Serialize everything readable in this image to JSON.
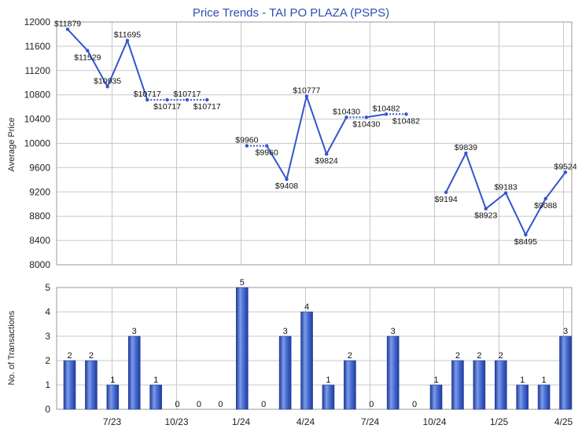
{
  "chart_data": {
    "type": "line+bar",
    "title": "Price Trends - TAI PO PLAZA (PSPS)",
    "x_tick_labels": [
      "7/23",
      "10/23",
      "1/24",
      "4/24",
      "7/24",
      "10/24",
      "1/25",
      "4/25"
    ],
    "top": {
      "type": "line",
      "ylabel": "Average Price",
      "ylim": [
        8000,
        12000
      ],
      "yticks": [
        8000,
        8400,
        8800,
        9200,
        9600,
        10000,
        10400,
        10800,
        11200,
        11600,
        12000
      ],
      "series": [
        {
          "values": [
            11879,
            11529,
            10935,
            11695,
            10717,
            10717,
            10717,
            10717,
            null,
            9960,
            9960,
            9408,
            10777,
            9824,
            10430,
            10430,
            10482,
            10482,
            null,
            9194,
            9839,
            8923,
            9183,
            8495,
            9088,
            9524
          ],
          "labels": [
            "$11879",
            "$11529",
            "$10935",
            "$11695",
            "$10717",
            "$10717",
            "$10717",
            "$10717",
            "",
            "$9960",
            "$9960",
            "$9408",
            "$10777",
            "$9824",
            "$10430",
            "$10430",
            "$10482",
            "$10482",
            "",
            "$9194",
            "$9839",
            "$8923",
            "$9183",
            "$8495",
            "$9088",
            "$9524"
          ]
        }
      ]
    },
    "bottom": {
      "type": "bar",
      "ylabel": "No. of Transactions",
      "ylim": [
        0,
        5
      ],
      "yticks": [
        0,
        1,
        2,
        3,
        4,
        5
      ],
      "values": [
        2,
        2,
        1,
        3,
        1,
        0,
        0,
        0,
        5,
        0,
        3,
        4,
        1,
        2,
        0,
        3,
        0,
        1,
        2,
        2,
        2,
        1,
        1,
        3
      ]
    },
    "grid": true,
    "colors": {
      "line": "#3355cc",
      "bar": "#3a5fc8",
      "bar_light": "#7d9be6",
      "bar_dark": "#1f3c9a",
      "grid": "#c8c8c8",
      "title": "#2f4fb0"
    }
  }
}
